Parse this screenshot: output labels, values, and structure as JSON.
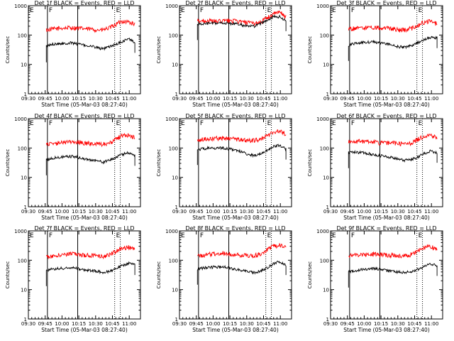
{
  "chart_data": {
    "type": "line",
    "shared": {
      "ylabel": "Counts/sec",
      "xlabel": "Start Time (05-Mar-03 08:27:40)",
      "x_ticks": [
        "09:30",
        "09:45",
        "10:00",
        "10:15",
        "10:30",
        "10:45",
        "11:00"
      ],
      "y_ticks": [
        "1",
        "10",
        "100",
        "1000"
      ],
      "ylim": [
        1,
        1000
      ],
      "yscale": "log",
      "xlim_minutes": [
        570,
        670
      ],
      "marker_labels": [
        "E",
        "F",
        "E"
      ],
      "marker_minutes": {
        "start": 570,
        "F": 587,
        "solid_line": 614,
        "dotted_lines": [
          647,
          652
        ]
      },
      "series_names": [
        "Events (BLACK)",
        "LLD (RED)"
      ],
      "series_colors": {
        "events": "#000000",
        "lld": "#ff0000"
      }
    },
    "panels": [
      {
        "title": "Det 1f BLACK = Events, RED = LLD",
        "lld": [
          150,
          160,
          170,
          175,
          180,
          170,
          165,
          160,
          150,
          150,
          175,
          230,
          300,
          280,
          230,
          160
        ],
        "events": [
          40,
          50,
          52,
          52,
          55,
          50,
          45,
          42,
          38,
          33,
          40,
          48,
          60,
          75,
          55,
          0
        ]
      },
      {
        "title": "Det 2f BLACK = Events, RED = LLD",
        "lld": [
          300,
          310,
          300,
          290,
          300,
          310,
          300,
          280,
          260,
          250,
          280,
          380,
          520,
          600,
          420,
          300
        ],
        "events": [
          230,
          240,
          250,
          250,
          260,
          250,
          240,
          220,
          200,
          200,
          240,
          320,
          420,
          420,
          300,
          0
        ]
      },
      {
        "title": "Det 3f BLACK = Events, RED = LLD",
        "lld": [
          160,
          170,
          170,
          180,
          180,
          175,
          170,
          165,
          150,
          150,
          170,
          210,
          280,
          290,
          240,
          150
        ],
        "events": [
          45,
          52,
          55,
          58,
          58,
          55,
          50,
          45,
          40,
          38,
          45,
          55,
          70,
          85,
          80,
          0
        ]
      },
      {
        "title": "Det 4f BLACK = Events, RED = LLD",
        "lld": [
          130,
          140,
          150,
          160,
          165,
          160,
          150,
          145,
          140,
          135,
          150,
          200,
          270,
          280,
          230,
          150
        ],
        "events": [
          40,
          45,
          48,
          50,
          52,
          48,
          42,
          40,
          37,
          33,
          38,
          48,
          60,
          70,
          55,
          0
        ]
      },
      {
        "title": "Det 5f BLACK = Events, RED = LLD",
        "lld": [
          190,
          200,
          210,
          215,
          220,
          210,
          200,
          190,
          180,
          180,
          200,
          260,
          350,
          380,
          300,
          200
        ],
        "events": [
          90,
          95,
          100,
          100,
          100,
          95,
          85,
          75,
          60,
          55,
          65,
          80,
          110,
          125,
          90,
          0
        ]
      },
      {
        "title": "Det 6f BLACK = Events, RED = LLD",
        "lld": [
          160,
          170,
          170,
          165,
          160,
          150,
          145,
          150,
          145,
          135,
          150,
          200,
          260,
          280,
          220,
          150
        ],
        "events": [
          70,
          72,
          70,
          65,
          60,
          55,
          50,
          48,
          42,
          38,
          42,
          50,
          65,
          80,
          70,
          0
        ]
      },
      {
        "title": "Det 7f BLACK = Events, RED = LLD",
        "lld": [
          130,
          140,
          150,
          160,
          165,
          160,
          150,
          145,
          140,
          135,
          150,
          200,
          260,
          280,
          230,
          150
        ],
        "events": [
          45,
          50,
          52,
          55,
          56,
          52,
          48,
          45,
          42,
          38,
          42,
          52,
          65,
          80,
          70,
          0
        ]
      },
      {
        "title": "Det 8f BLACK = Events, RED = LLD",
        "lld": [
          140,
          150,
          160,
          170,
          175,
          165,
          160,
          150,
          145,
          145,
          160,
          220,
          300,
          330,
          270,
          160
        ],
        "events": [
          50,
          55,
          58,
          58,
          60,
          55,
          50,
          45,
          40,
          38,
          42,
          55,
          75,
          90,
          70,
          0
        ]
      },
      {
        "title": "Det 9f BLACK = Events, RED = LLD",
        "lld": [
          150,
          150,
          155,
          160,
          160,
          155,
          150,
          148,
          145,
          145,
          160,
          210,
          270,
          290,
          230,
          150
        ],
        "events": [
          40,
          45,
          48,
          50,
          52,
          50,
          45,
          42,
          40,
          38,
          42,
          50,
          60,
          75,
          65,
          0
        ]
      }
    ]
  }
}
